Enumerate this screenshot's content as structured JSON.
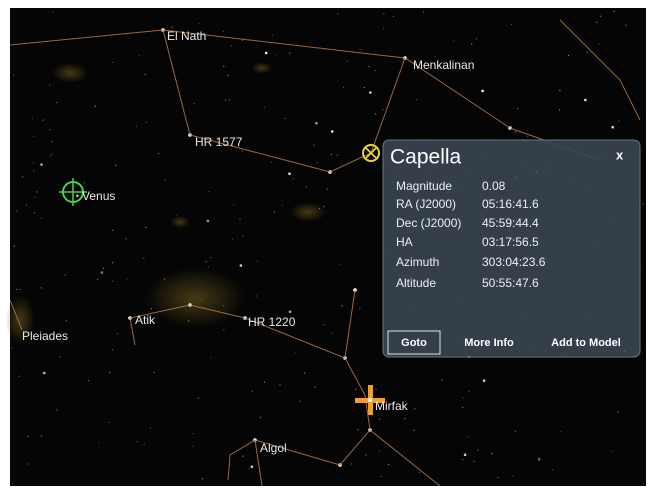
{
  "sky_labels": [
    "El Nath",
    "Menkalinan",
    "HR 1577",
    "Venus",
    "Pleiades",
    "Atik",
    "HR 1220",
    "Mirfak",
    "Algol"
  ],
  "popup": {
    "title": "Capella",
    "close": "x",
    "rows": [
      [
        "Magnitude",
        "0.08"
      ],
      [
        "RA (J2000)",
        "05:16:41.6"
      ],
      [
        "Dec (J2000)",
        "45:59:44.4"
      ],
      [
        "HA",
        "03:17:56.5"
      ],
      [
        "Azimuth",
        "303:04:23.6"
      ],
      [
        "Altitude",
        "50:55:47.6"
      ]
    ],
    "buttons": [
      "Goto",
      "More Info",
      "Add to Model"
    ]
  }
}
